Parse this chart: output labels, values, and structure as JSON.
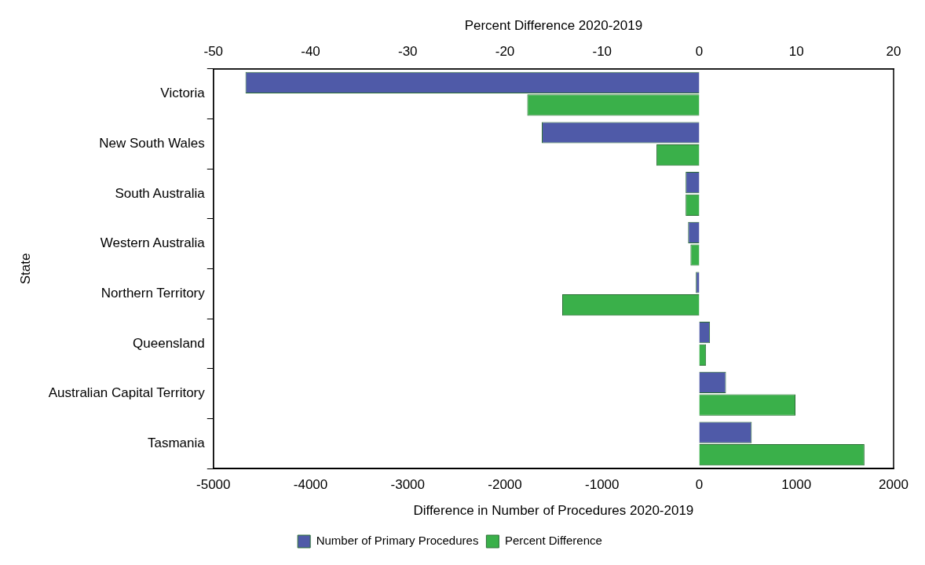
{
  "chart_data": {
    "type": "bar",
    "orientation": "horizontal",
    "xlabel": "Difference in Number of Procedures 2020-2019",
    "x2label": "Percent Difference 2020-2019",
    "ylabel": "State",
    "categories": [
      "Victoria",
      "New South Wales",
      "South Australia",
      "Western Australia",
      "Northern Territory",
      "Queensland",
      "Australian Capital Territory",
      "Tasmania"
    ],
    "series": [
      {
        "name": "Number of Primary Procedures",
        "color": "#4f5aa8",
        "values": [
          -4670,
          -1620,
          -140,
          -115,
          -35,
          110,
          275,
          540
        ]
      },
      {
        "name": "Percent Difference",
        "color": "#3ab04a",
        "axis": "x2",
        "values": [
          -17.7,
          -4.4,
          -1.4,
          -0.9,
          -14.1,
          0.7,
          9.9,
          17.0
        ]
      }
    ],
    "xlim": [
      -5000,
      2000
    ],
    "xticks": [
      -5000,
      -4000,
      -3000,
      -2000,
      -1000,
      0,
      1000,
      2000
    ],
    "x2lim": [
      -50,
      20
    ],
    "x2ticks": [
      -50,
      -40,
      -30,
      -20,
      -10,
      0,
      10,
      20
    ],
    "grid": false,
    "legend": "bottom"
  }
}
